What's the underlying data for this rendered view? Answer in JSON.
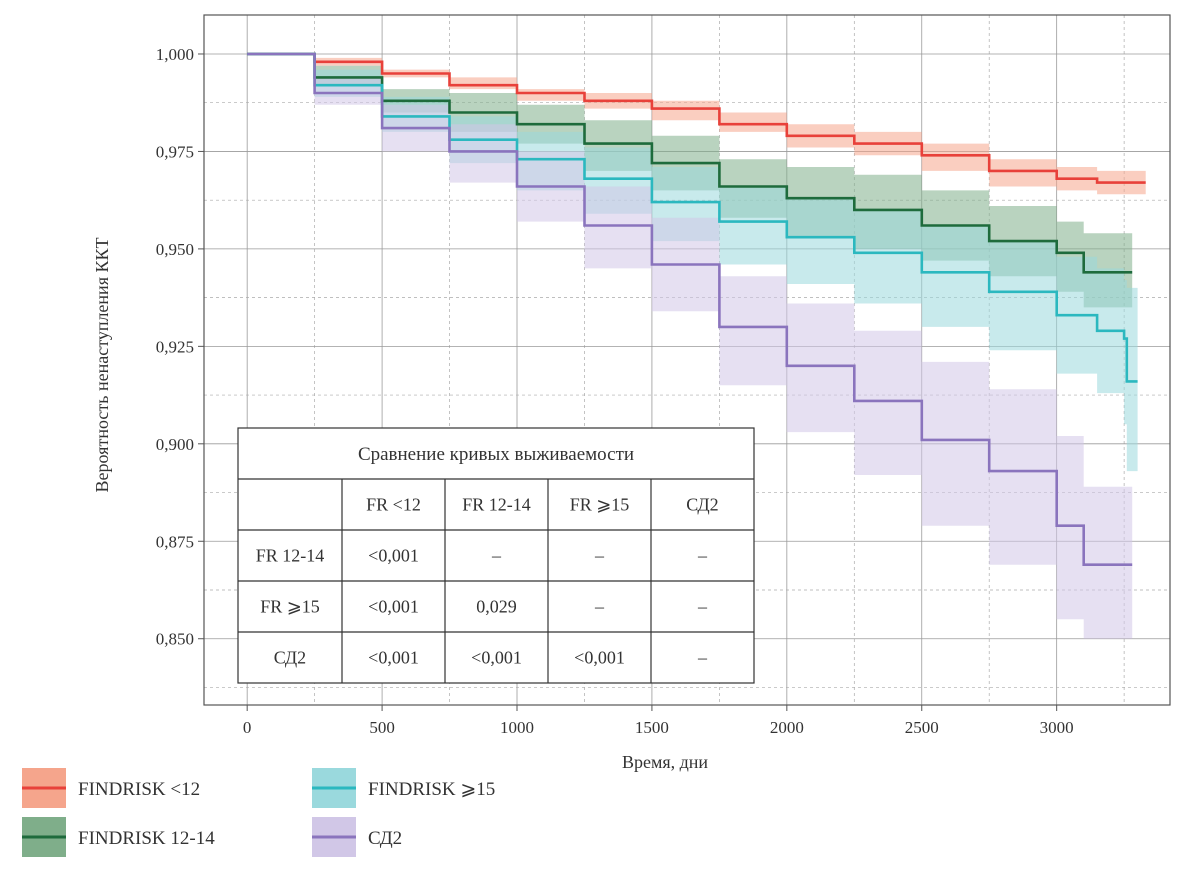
{
  "chart_data": {
    "type": "line",
    "subtype": "kaplan-meier",
    "title": "",
    "xlabel": "Время, дни",
    "ylabel": "Вероятность ненаступления ККТ",
    "xlim": [
      -160,
      3420
    ],
    "ylim": [
      0.833,
      1.01
    ],
    "xticks": [
      0,
      500,
      1000,
      1500,
      2000,
      2500,
      3000
    ],
    "xtick_labels": [
      "0",
      "500",
      "1000",
      "1500",
      "2000",
      "2500",
      "3000"
    ],
    "yticks": [
      0.85,
      0.875,
      0.9,
      0.925,
      0.95,
      0.975,
      1.0
    ],
    "ytick_labels": [
      "0,850",
      "0,875",
      "0,900",
      "0,925",
      "0,950",
      "0,975",
      "1,000"
    ],
    "grid": true,
    "legend_position": "bottom-left",
    "series": [
      {
        "name": "FINDRISK <12",
        "color": "#e8413a",
        "band_color": "#f5a58c",
        "x": [
          0,
          250,
          500,
          750,
          1000,
          1250,
          1500,
          1750,
          2000,
          2250,
          2500,
          2750,
          3000,
          3150,
          3330
        ],
        "y": [
          1.0,
          0.998,
          0.995,
          0.992,
          0.99,
          0.988,
          0.986,
          0.982,
          0.979,
          0.977,
          0.974,
          0.97,
          0.968,
          0.967,
          0.967
        ],
        "lower": [
          1.0,
          0.997,
          0.994,
          0.991,
          0.988,
          0.986,
          0.983,
          0.98,
          0.976,
          0.974,
          0.97,
          0.966,
          0.965,
          0.964,
          0.964
        ],
        "upper": [
          1.0,
          0.999,
          0.996,
          0.994,
          0.991,
          0.99,
          0.988,
          0.985,
          0.982,
          0.98,
          0.977,
          0.973,
          0.971,
          0.97,
          0.97
        ]
      },
      {
        "name": "FINDRISK 12-14",
        "color": "#1e6b3c",
        "band_color": "#7fae8a",
        "x": [
          0,
          250,
          500,
          750,
          1000,
          1250,
          1500,
          1750,
          2000,
          2250,
          2500,
          2750,
          3000,
          3100,
          3280
        ],
        "y": [
          1.0,
          0.994,
          0.988,
          0.985,
          0.982,
          0.977,
          0.972,
          0.966,
          0.963,
          0.96,
          0.956,
          0.952,
          0.949,
          0.944,
          0.944
        ],
        "lower": [
          1.0,
          0.992,
          0.985,
          0.98,
          0.977,
          0.97,
          0.965,
          0.958,
          0.953,
          0.95,
          0.947,
          0.943,
          0.939,
          0.935,
          0.934
        ],
        "upper": [
          1.0,
          0.997,
          0.991,
          0.99,
          0.987,
          0.983,
          0.979,
          0.973,
          0.971,
          0.969,
          0.965,
          0.961,
          0.957,
          0.954,
          0.954
        ]
      },
      {
        "name": "FINDRISK ≥15",
        "color": "#2bb8bf",
        "band_color": "#9ad9dd",
        "x": [
          0,
          250,
          500,
          750,
          1000,
          1250,
          1500,
          1750,
          2000,
          2250,
          2500,
          2750,
          3000,
          3150,
          3250,
          3260,
          3300
        ],
        "y": [
          1.0,
          0.992,
          0.984,
          0.978,
          0.973,
          0.968,
          0.962,
          0.957,
          0.953,
          0.949,
          0.944,
          0.939,
          0.933,
          0.929,
          0.927,
          0.916,
          0.916
        ],
        "lower": [
          1.0,
          0.989,
          0.98,
          0.972,
          0.965,
          0.959,
          0.952,
          0.946,
          0.941,
          0.936,
          0.93,
          0.924,
          0.918,
          0.913,
          0.905,
          0.893,
          0.893
        ],
        "upper": [
          1.0,
          0.996,
          0.989,
          0.984,
          0.98,
          0.976,
          0.971,
          0.966,
          0.963,
          0.96,
          0.956,
          0.952,
          0.948,
          0.945,
          0.942,
          0.94,
          0.94
        ]
      },
      {
        "name": "СД2",
        "color": "#8a74bd",
        "band_color": "#d1c7e7",
        "x": [
          0,
          250,
          500,
          750,
          1000,
          1250,
          1500,
          1750,
          2000,
          2250,
          2500,
          2750,
          3000,
          3100,
          3280
        ],
        "y": [
          1.0,
          0.99,
          0.981,
          0.975,
          0.966,
          0.956,
          0.946,
          0.93,
          0.92,
          0.911,
          0.901,
          0.893,
          0.879,
          0.869,
          0.869
        ],
        "lower": [
          1.0,
          0.987,
          0.975,
          0.967,
          0.957,
          0.945,
          0.934,
          0.915,
          0.903,
          0.892,
          0.879,
          0.869,
          0.855,
          0.85,
          0.85
        ],
        "upper": [
          1.0,
          0.994,
          0.987,
          0.982,
          0.975,
          0.966,
          0.958,
          0.943,
          0.936,
          0.929,
          0.921,
          0.914,
          0.902,
          0.889,
          0.889
        ]
      }
    ],
    "comparison_table": {
      "title": "Сравнение кривых выживаемости",
      "columns": [
        "",
        "FR <12",
        "FR 12-14",
        "FR ⩾15",
        "СД2"
      ],
      "rows": [
        [
          "FR 12-14",
          "<0,001",
          "–",
          "–",
          "–"
        ],
        [
          "FR ⩾15",
          "<0,001",
          "0,029",
          "–",
          "–"
        ],
        [
          "СД2",
          "<0,001",
          "<0,001",
          "<0,001",
          "–"
        ]
      ]
    },
    "legend": [
      {
        "label": "FINDRISK <12",
        "color": "#e8413a",
        "band_color": "#f5a58c"
      },
      {
        "label": "FINDRISK 12-14",
        "color": "#1e6b3c",
        "band_color": "#7fae8a"
      },
      {
        "label": "FINDRISK ⩾15",
        "color": "#2bb8bf",
        "band_color": "#9ad9dd"
      },
      {
        "label": "СД2",
        "color": "#8a74bd",
        "band_color": "#d1c7e7"
      }
    ]
  }
}
